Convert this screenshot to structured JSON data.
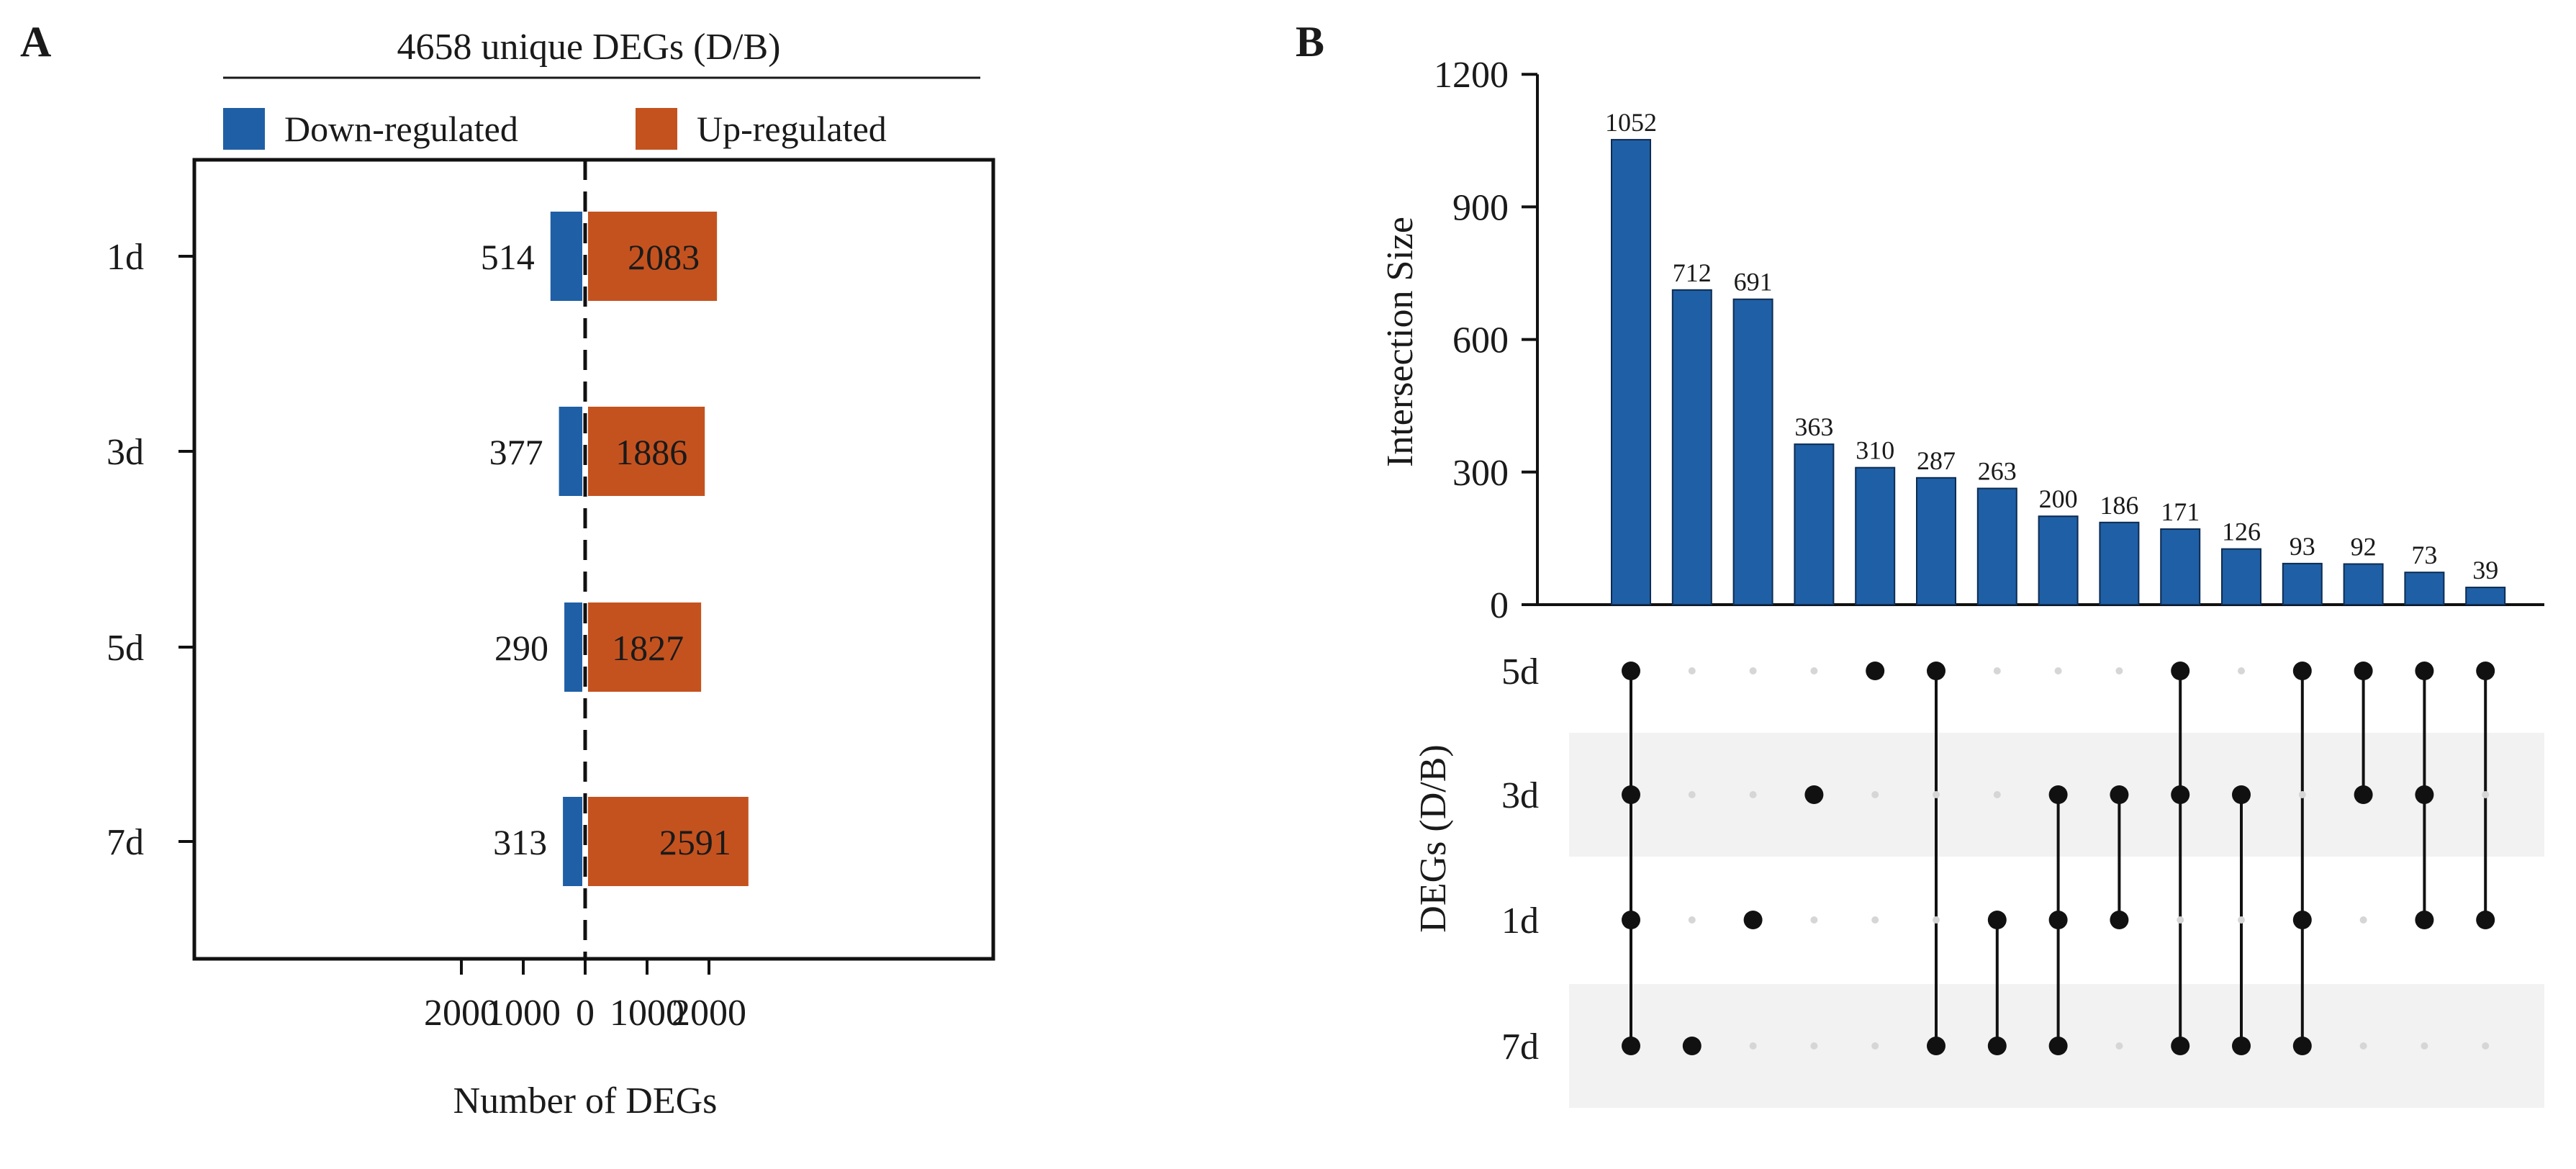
{
  "panels": {
    "a_label": "A",
    "b_label": "B"
  },
  "colors": {
    "down": "#1f5fa5",
    "up": "#c4521f",
    "bar": "#1f5fa5",
    "dot_on": "#111111",
    "dot_off": "#d6d6d6",
    "band": "#f2f2f2"
  },
  "chart_data": [
    {
      "type": "bar",
      "orientation": "horizontal-diverging",
      "title": "4658 unique DEGs (D/B)",
      "xlabel": "Number of DEGs",
      "ylabel": "",
      "categories": [
        "1d",
        "3d",
        "5d",
        "7d"
      ],
      "series": [
        {
          "name": "Down-regulated",
          "values": [
            514,
            377,
            290,
            313
          ]
        },
        {
          "name": "Up-regulated",
          "values": [
            2083,
            1886,
            1827,
            2591
          ]
        }
      ],
      "xlim": [
        -2800,
        2800
      ],
      "x_ticks": [
        -2000,
        -1000,
        0,
        1000,
        2000
      ],
      "x_tick_labels": [
        "2000",
        "1000",
        "0",
        "1000",
        "2000"
      ],
      "legend": "top",
      "zero_line": "dashed"
    },
    {
      "type": "upset",
      "ylabel": "Intersection Size",
      "matrix_label": "DEGs (D/B)",
      "ylim": [
        0,
        1200
      ],
      "y_ticks": [
        0,
        300,
        600,
        900,
        1200
      ],
      "sets": [
        "5d",
        "3d",
        "1d",
        "7d"
      ],
      "intersections": [
        {
          "size": 1052,
          "sets": [
            "5d",
            "3d",
            "1d",
            "7d"
          ]
        },
        {
          "size": 712,
          "sets": [
            "7d"
          ]
        },
        {
          "size": 691,
          "sets": [
            "1d"
          ]
        },
        {
          "size": 363,
          "sets": [
            "3d"
          ]
        },
        {
          "size": 310,
          "sets": [
            "5d"
          ]
        },
        {
          "size": 287,
          "sets": [
            "5d",
            "7d"
          ]
        },
        {
          "size": 263,
          "sets": [
            "1d",
            "7d"
          ]
        },
        {
          "size": 200,
          "sets": [
            "3d",
            "1d",
            "7d"
          ]
        },
        {
          "size": 186,
          "sets": [
            "3d",
            "1d"
          ]
        },
        {
          "size": 171,
          "sets": [
            "5d",
            "3d",
            "7d"
          ]
        },
        {
          "size": 126,
          "sets": [
            "3d",
            "7d"
          ]
        },
        {
          "size": 93,
          "sets": [
            "5d",
            "1d",
            "7d"
          ]
        },
        {
          "size": 92,
          "sets": [
            "5d",
            "3d"
          ]
        },
        {
          "size": 73,
          "sets": [
            "5d",
            "3d",
            "1d"
          ]
        },
        {
          "size": 39,
          "sets": [
            "5d",
            "1d"
          ]
        }
      ]
    }
  ]
}
